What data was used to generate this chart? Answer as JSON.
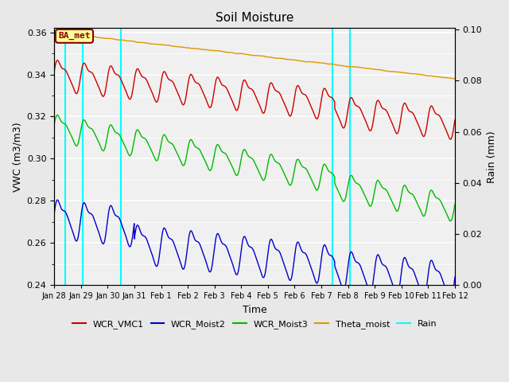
{
  "title": "Soil Moisture",
  "xlabel": "Time",
  "ylabel_left": "VWC (m3/m3)",
  "ylabel_right": "Rain (mm)",
  "ylim_left": [
    0.24,
    0.362
  ],
  "ylim_right": [
    0.0,
    0.1006
  ],
  "background_color": "#e8e8e8",
  "plot_bg_color": "#f0f0f0",
  "annotation_text": "BA_met",
  "annotation_bg": "#ffff99",
  "annotation_border": "#8b0000",
  "annotation_text_color": "#8b0000",
  "grid_color": "white",
  "cyan_lines_x": [
    0.42,
    1.08,
    2.5,
    10.42,
    11.08
  ],
  "series": {
    "WCR_VMC1": {
      "color": "#cc0000",
      "lw": 1.0
    },
    "WCR_Moist2": {
      "color": "#0000cc",
      "lw": 1.0
    },
    "WCR_Moist3": {
      "color": "#00bb00",
      "lw": 1.0
    },
    "Theta_moist": {
      "color": "#dd9900",
      "lw": 1.0
    },
    "Rain": {
      "color": "cyan",
      "lw": 1.5
    }
  },
  "legend_labels": [
    "WCR_VMC1",
    "WCR_Moist2",
    "WCR_Moist3",
    "Theta_moist",
    "Rain"
  ],
  "legend_colors": [
    "#cc0000",
    "#0000cc",
    "#00bb00",
    "#dd9900",
    "cyan"
  ],
  "xtick_labels": [
    "Jan 28",
    "Jan 29",
    "Jan 30",
    "Jan 31",
    "Feb 1",
    "Feb 2",
    "Feb 3",
    "Feb 4",
    "Feb 5",
    "Feb 6",
    "Feb 7",
    "Feb 8",
    "Feb 9",
    "Feb 10",
    "Feb 11",
    "Feb 12"
  ],
  "n_days": 15
}
